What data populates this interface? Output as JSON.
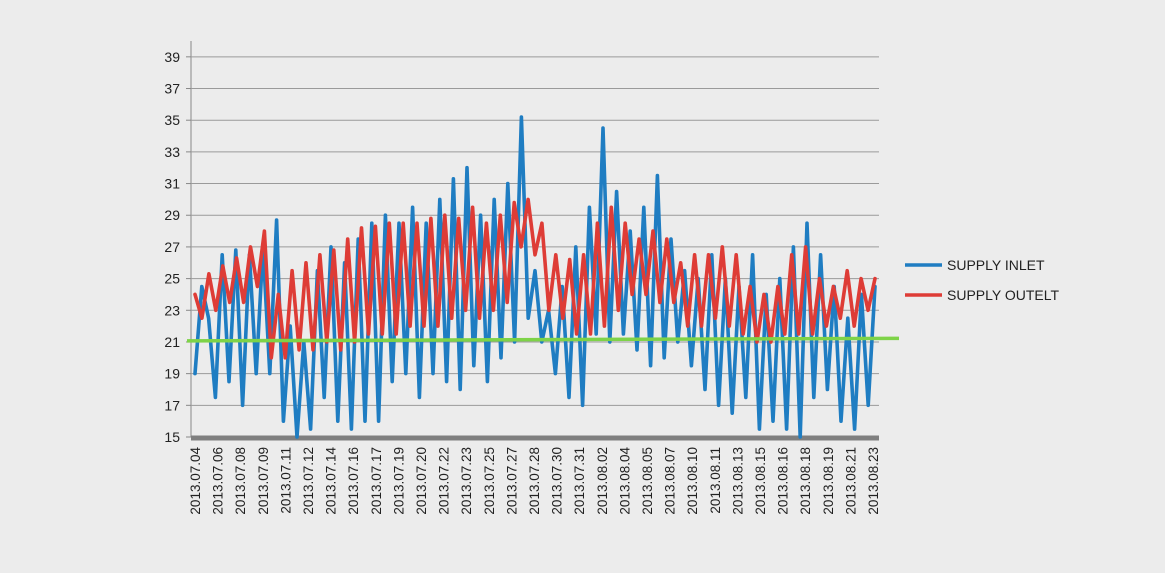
{
  "chart_data": {
    "type": "line",
    "title": "",
    "xlabel": "",
    "ylabel": "",
    "ylim": [
      15,
      40
    ],
    "yticks": [
      15,
      17,
      19,
      21,
      23,
      25,
      27,
      29,
      31,
      33,
      35,
      37,
      39
    ],
    "grid": true,
    "legend_position": "right",
    "x_tick_labels": [
      "2013.07.04",
      "2013.07.06",
      "2013.07.08",
      "2013.07.09",
      "2013.07.11",
      "2013.07.12",
      "2013.07.14",
      "2013.07.16",
      "2013.07.17",
      "2013.07.19",
      "2013.07.20",
      "2013.07.22",
      "2013.07.23",
      "2013.07.25",
      "2013.07.27",
      "2013.07.28",
      "2013.07.30",
      "2013.07.31",
      "2013.08.02",
      "2013.08.04",
      "2013.08.05",
      "2013.08.07",
      "2013.08.10",
      "2013.08.11",
      "2013.08.13",
      "2013.08.15",
      "2013.08.16",
      "2013.08.18",
      "2013.08.19",
      "2013.08.21",
      "2013.08.23"
    ],
    "reference_line": {
      "value": 21.1,
      "color": "#7ed348"
    },
    "series": [
      {
        "name": "SUPPLY INLET",
        "color": "#1f7dc2",
        "values": [
          19.0,
          24.5,
          22.5,
          17.5,
          26.5,
          18.5,
          26.8,
          17.0,
          26.5,
          19.0,
          27.0,
          19.0,
          28.7,
          16.0,
          22.0,
          15.0,
          21.0,
          15.5,
          25.5,
          17.5,
          27.0,
          16.0,
          26.0,
          15.5,
          27.5,
          16.0,
          28.5,
          16.0,
          29.0,
          18.5,
          28.5,
          19.0,
          29.5,
          17.5,
          28.5,
          19.0,
          30.0,
          18.5,
          31.3,
          18.0,
          32.0,
          19.5,
          29.0,
          18.5,
          30.0,
          20.0,
          31.0,
          21.0,
          35.2,
          22.5,
          25.5,
          21.0,
          23.0,
          19.0,
          24.5,
          17.5,
          27.0,
          17.0,
          29.5,
          21.5,
          34.5,
          21.0,
          30.5,
          21.5,
          28.0,
          20.5,
          29.5,
          19.5,
          31.5,
          20.0,
          27.5,
          21.0,
          25.5,
          19.5,
          25.0,
          18.0,
          26.5,
          17.0,
          25.0,
          16.5,
          24.5,
          17.5,
          26.5,
          15.5,
          24.0,
          16.0,
          25.0,
          15.5,
          27.0,
          15.0,
          28.5,
          17.5,
          26.5,
          18.0,
          24.5,
          16.0,
          22.5,
          15.5,
          24.0,
          17.0,
          24.5
        ]
      },
      {
        "name": "SUPPLY OUTELT",
        "color": "#de3c36",
        "values": [
          24.0,
          22.5,
          25.3,
          23.0,
          25.8,
          23.5,
          26.3,
          23.5,
          27.0,
          24.5,
          28.0,
          20.0,
          24.0,
          20.0,
          25.5,
          20.5,
          26.0,
          20.5,
          26.5,
          21.0,
          26.8,
          20.5,
          27.5,
          21.0,
          28.2,
          21.5,
          28.3,
          21.5,
          28.5,
          21.5,
          28.5,
          22.0,
          28.5,
          22.0,
          28.8,
          22.0,
          29.0,
          22.5,
          28.8,
          23.0,
          29.5,
          22.5,
          28.5,
          23.0,
          29.0,
          23.5,
          29.8,
          27.0,
          30.0,
          26.5,
          28.5,
          23.0,
          26.5,
          22.5,
          26.2,
          21.5,
          26.5,
          21.5,
          28.5,
          22.0,
          29.5,
          23.0,
          28.5,
          24.0,
          27.5,
          24.0,
          28.0,
          23.5,
          27.5,
          23.5,
          26.0,
          22.0,
          26.5,
          22.0,
          26.5,
          22.5,
          27.0,
          22.0,
          26.5,
          21.5,
          24.5,
          21.0,
          24.0,
          21.0,
          24.5,
          21.5,
          26.5,
          21.5,
          27.0,
          21.5,
          25.0,
          22.0,
          24.5,
          22.5,
          25.5,
          22.0,
          25.0,
          23.0,
          25.0
        ]
      }
    ]
  }
}
